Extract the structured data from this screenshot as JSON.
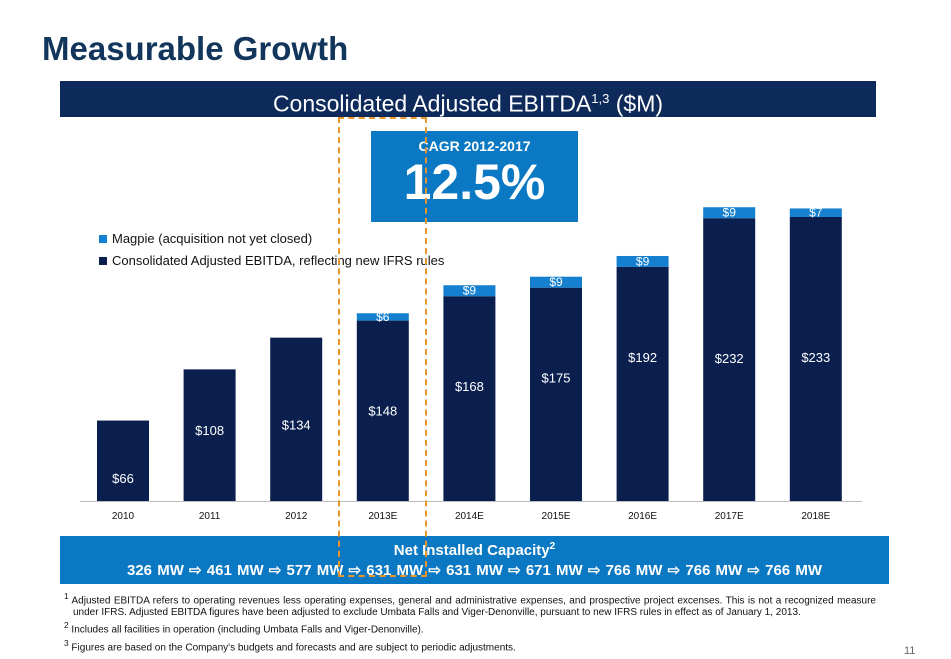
{
  "title": "Measurable Growth",
  "header": {
    "text": "Consolidated Adjusted EBITDA",
    "sup": "1,3",
    "unit": " ($M)"
  },
  "cagr": {
    "label": "CAGR 2012-2017",
    "value": "12.5%"
  },
  "colors": {
    "navy": "#0b1f4f",
    "blue": "#1580cf",
    "highlight": "#e8962b"
  },
  "chart_data": {
    "type": "bar",
    "stacked": true,
    "categories": [
      "2010",
      "2011",
      "2012",
      "2013E",
      "2014E",
      "2015E",
      "2016E",
      "2017E",
      "2018E"
    ],
    "series": [
      {
        "name": "Consolidated Adjusted EBITDA, reflecting new IFRS rules",
        "values": [
          66,
          108,
          134,
          148,
          168,
          175,
          192,
          232,
          233
        ],
        "labels": [
          "$66",
          "$108",
          "$134",
          "$148",
          "$168",
          "$175",
          "$192",
          "$232",
          "$233"
        ]
      },
      {
        "name": "Magpie (acquisition not yet closed)",
        "values": [
          0,
          0,
          0,
          6,
          9,
          9,
          9,
          9,
          7
        ],
        "labels": [
          "",
          "",
          "",
          "$6",
          "$9",
          "$9",
          "$9",
          "$9",
          "$7"
        ]
      }
    ],
    "legend": "top-left",
    "grid": false
  },
  "capacity": {
    "title": "Net Installed Capacity",
    "sup": "2",
    "values": [
      "326 MW",
      "461 MW",
      "577 MW",
      "631 MW",
      "631 MW",
      "671 MW",
      "766 MW",
      "766 MW",
      "766 MW"
    ],
    "arrow": "⇨"
  },
  "footnotes": [
    {
      "n": "1",
      "text": "Adjusted EBITDA refers to operating revenues less operating expenses, general and administrative expenses, and prospective project excenses. This is not a recognized measure under IFRS. Adjusted EBITDA figures have been adjusted to exclude Umbata Falls and Viger-Denonville, pursuant to new IFRS rules in effect as of January 1, 2013."
    },
    {
      "n": "2",
      "text": "Includes all facilities in operation (including Umbata Falls and Viger-Denonville)."
    },
    {
      "n": "3",
      "text": "Figures are based on the Company's budgets and forecasts and are subject to periodic adjustments."
    }
  ],
  "page": "11"
}
